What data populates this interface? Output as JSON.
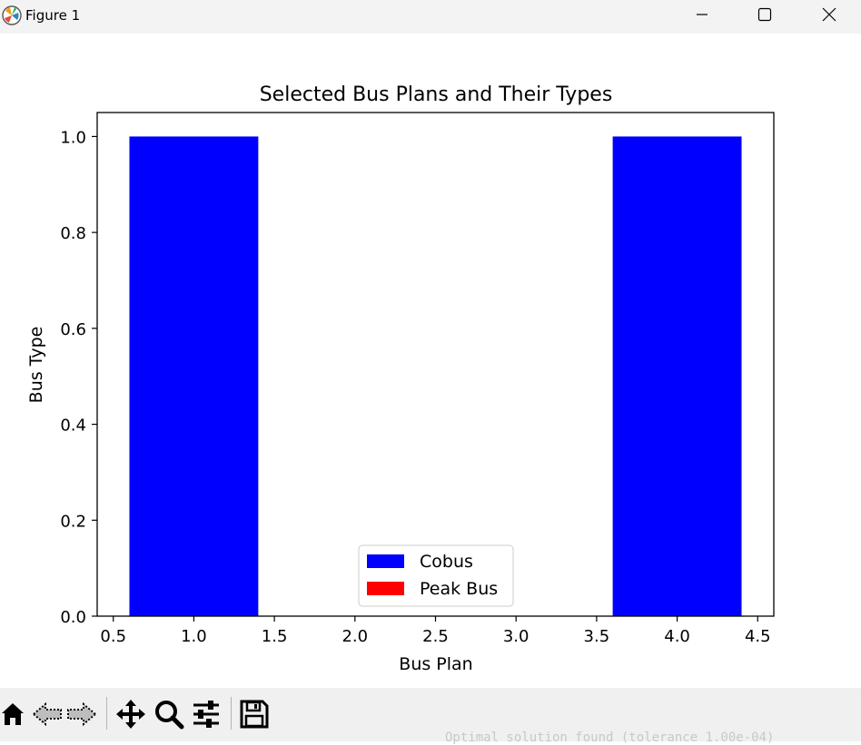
{
  "window": {
    "title": "Figure 1",
    "icon": "matplotlib-icon",
    "controls": [
      "minimize-icon",
      "maximize-icon",
      "close-icon"
    ]
  },
  "toolbar": {
    "tools": [
      "home-icon",
      "back-icon",
      "forward-icon",
      "pan-icon",
      "zoom-icon",
      "configure-subplots-icon",
      "save-icon"
    ],
    "status": "Optimal solution found (tolerance 1.00e-04)"
  },
  "chart_data": {
    "type": "bar",
    "title": "Selected Bus Plans and Their Types",
    "xlabel": "Bus Plan",
    "ylabel": "Bus Type",
    "xlim": [
      0.4,
      4.6
    ],
    "ylim": [
      0,
      1.05
    ],
    "xticks": [
      0.5,
      1.0,
      1.5,
      2.0,
      2.5,
      3.0,
      3.5,
      4.0,
      4.5
    ],
    "xtick_labels": [
      "0.5",
      "1.0",
      "1.5",
      "2.0",
      "2.5",
      "3.0",
      "3.5",
      "4.0",
      "4.5"
    ],
    "yticks": [
      0.0,
      0.2,
      0.4,
      0.6,
      0.8,
      1.0
    ],
    "ytick_labels": [
      "0.0",
      "0.2",
      "0.4",
      "0.6",
      "0.8",
      "1.0"
    ],
    "bar_width": 0.8,
    "bars": [
      {
        "x": 1,
        "value": 1,
        "color": "#0000ff"
      },
      {
        "x": 4,
        "value": 1,
        "color": "#0000ff"
      }
    ],
    "legend": {
      "placement": "lower center",
      "entries": [
        {
          "label": "Cobus",
          "color": "#0000ff"
        },
        {
          "label": "Peak Bus",
          "color": "#ff0000"
        }
      ]
    },
    "grid": false
  }
}
